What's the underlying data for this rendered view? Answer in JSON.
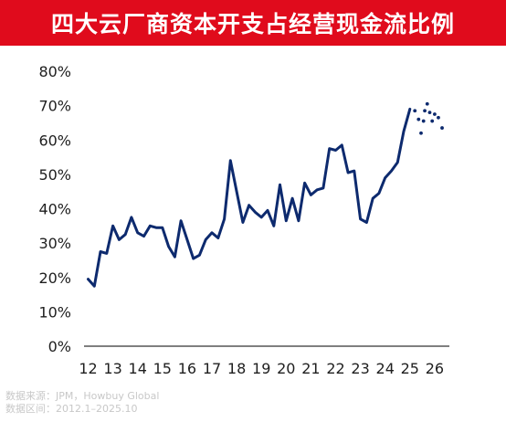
{
  "title": "四大云厂商资本开支占经营现金流比例",
  "source_line1": "数据来源：JPM，Howbuy Global",
  "source_line2": "数据区间：2012.1–2025.10",
  "colors": {
    "title_bg": "#e00b1c",
    "line": "#0d2a6e",
    "axis": "#333333"
  },
  "chart_data": {
    "type": "line",
    "title": "四大云厂商资本开支占经营现金流比例",
    "xlabel": "",
    "ylabel": "",
    "x_ticks": [
      "12",
      "13",
      "14",
      "15",
      "16",
      "17",
      "18",
      "19",
      "20",
      "21",
      "22",
      "23",
      "24",
      "25",
      "26"
    ],
    "x_range": [
      12,
      26.8
    ],
    "y_ticks": [
      "0%",
      "10%",
      "20%",
      "30%",
      "40%",
      "50%",
      "60%",
      "70%",
      "80%"
    ],
    "ylim": [
      0,
      80
    ],
    "grid": false,
    "series": [
      {
        "style": "solid",
        "x": [
          12.0,
          12.25,
          12.5,
          12.75,
          13.0,
          13.25,
          13.5,
          13.75,
          14.0,
          14.25,
          14.5,
          14.75,
          15.0,
          15.25,
          15.5,
          15.75,
          16.0,
          16.25,
          16.5,
          16.75,
          17.0,
          17.25,
          17.5,
          17.75,
          18.0,
          18.25,
          18.5,
          18.75,
          19.0,
          19.25,
          19.5,
          19.75,
          20.0,
          20.25,
          20.5,
          20.75,
          21.0,
          21.25,
          21.5,
          21.75,
          22.0,
          22.25,
          22.5,
          22.75,
          23.0,
          23.25,
          23.5,
          23.75,
          24.0,
          24.25,
          24.5,
          24.75,
          25.0
        ],
        "y": [
          19.5,
          17.5,
          27.5,
          27.0,
          35.0,
          31.0,
          32.5,
          37.5,
          33.0,
          32.0,
          35.0,
          34.5,
          34.5,
          29.0,
          26.0,
          36.5,
          31.0,
          25.5,
          26.5,
          31.0,
          33.0,
          31.5,
          37.0,
          54.0,
          45.0,
          36.0,
          41.0,
          39.0,
          37.5,
          39.5,
          35.0,
          47.0,
          36.5,
          43.0,
          36.5,
          47.5,
          44.0,
          45.5,
          46.0,
          57.5,
          57.0,
          58.5,
          50.5,
          51.0,
          37.0,
          36.0,
          43.0,
          44.5,
          49.0,
          51.0,
          53.5,
          62.5,
          69.0
        ]
      },
      {
        "style": "dotted",
        "x": [
          25.2,
          25.35,
          25.45,
          25.55,
          25.6,
          25.7,
          25.8,
          25.9,
          26.0,
          26.15,
          26.3
        ],
        "y": [
          68.5,
          66.0,
          62.0,
          65.5,
          68.5,
          70.5,
          68.0,
          65.5,
          67.5,
          66.5,
          63.5
        ]
      }
    ]
  }
}
